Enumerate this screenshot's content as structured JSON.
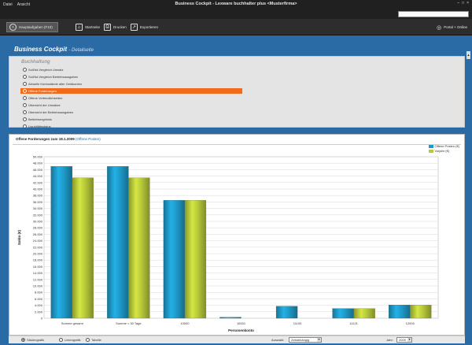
{
  "window": {
    "title": "Business Cockpit - Lexware buchhalter plus <Musterfirma>",
    "menu": [
      "Datei",
      "Ansicht"
    ],
    "search_placeholder": ""
  },
  "toolbar": {
    "items": [
      {
        "label": "Hauptaufgaben (F10)",
        "icon": "circle-arrow-icon"
      },
      {
        "label": "Startseite",
        "icon": "home-icon"
      },
      {
        "label": "Drucken",
        "icon": "printer-icon"
      },
      {
        "label": "Exportieren",
        "icon": "export-icon"
      }
    ],
    "help_label": "Portal + Online"
  },
  "page": {
    "title": "Business Cockpit",
    "subtitle": "- Detailseite"
  },
  "options": {
    "group_label": "Buchhaltung",
    "items": [
      "Soll/Ist-Vergleich Umsatz",
      "Soll/Ist-Vergleich Betriebsausgaben",
      "Aktuelle Kontostände aller Geldkonten",
      "Offene Forderungen",
      "Offene Verbindlichkeiten",
      "Übersicht der Umsätze",
      "Übersicht der Betriebsausgaben",
      "Betriebsergebnis",
      "Liquiditätsstatus"
    ],
    "selected_index": 3
  },
  "chart": {
    "heading": "Offene Forderungen zum 18.1.2009",
    "heading_link": "(Offene Posten)",
    "ylabel": "Saldo (€)",
    "xlabel": "Personenkonto"
  },
  "chart_data": {
    "type": "bar",
    "categories": [
      "Summe gesamt",
      "Summe < 30 Tage",
      "10000",
      "10001",
      "11100",
      "11121",
      "12003"
    ],
    "series": [
      {
        "name": "Offene Posten (€)",
        "values": [
          47000,
          47000,
          36500,
          300,
          3700,
          3000,
          4100
        ],
        "color": "#1e9ac8"
      },
      {
        "name": "Vorjahr (€)",
        "values": [
          43500,
          43500,
          36500,
          0,
          0,
          3000,
          4100
        ],
        "color": "#b8c93a"
      }
    ],
    "ylim": [
      0,
      50000
    ],
    "yticks": [
      "0",
      "2.000",
      "4.000",
      "6.000",
      "8.000",
      "10.000",
      "12.000",
      "14.000",
      "16.000",
      "18.000",
      "20.000",
      "22.000",
      "24.000",
      "26.000",
      "28.000",
      "30.000",
      "32.000",
      "34.000",
      "36.000",
      "38.000",
      "40.000",
      "42.000",
      "44.000",
      "46.000",
      "48.000",
      "50.000"
    ],
    "grid": true,
    "legend_position": "top-right"
  },
  "footer": {
    "views": [
      "Säulengrafik",
      "Liniengrafik",
      "Tabelle"
    ],
    "selected_view": 0,
    "sort_label": "Auswahl:",
    "sort_value": "Zeitabhängig",
    "year_label": "Jahr:",
    "year_value": "2009"
  },
  "colors": {
    "frame": "#2a6aa5",
    "selection": "#f26a1b",
    "series1": "#1e9ac8",
    "series2": "#b8c93a"
  }
}
